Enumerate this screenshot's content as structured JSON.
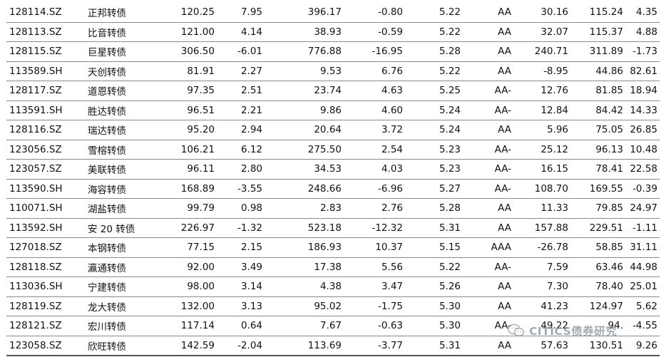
{
  "rows": [
    [
      "128114.SZ",
      "正邦转债",
      "120.25",
      "7.95",
      "396.17",
      "-0.80",
      "5.22",
      "AA",
      "30.16",
      "115.24",
      "4.35"
    ],
    [
      "128113.SZ",
      "比音转债",
      "121.00",
      "4.14",
      "38.93",
      "-0.59",
      "5.22",
      "AA",
      "32.07",
      "115.37",
      "4.88"
    ],
    [
      "128115.SZ",
      "巨星转债",
      "306.50",
      "-6.01",
      "776.88",
      "-16.95",
      "5.28",
      "AA",
      "240.71",
      "311.89",
      "-1.73"
    ],
    [
      "113589.SH",
      "天创转债",
      "81.91",
      "2.27",
      "9.53",
      "6.76",
      "5.22",
      "AA",
      "-8.95",
      "44.86",
      "82.61"
    ],
    [
      "128117.SZ",
      "道恩转债",
      "97.35",
      "2.51",
      "23.74",
      "4.63",
      "5.25",
      "AA-",
      "12.76",
      "81.85",
      "18.94"
    ],
    [
      "113591.SH",
      "胜达转债",
      "96.51",
      "2.21",
      "9.86",
      "4.60",
      "5.24",
      "AA-",
      "12.84",
      "84.42",
      "14.33"
    ],
    [
      "128116.SZ",
      "瑞达转债",
      "95.20",
      "2.94",
      "20.64",
      "3.72",
      "5.24",
      "AA",
      "5.96",
      "75.05",
      "26.85"
    ],
    [
      "123056.SZ",
      "雪榕转债",
      "106.21",
      "6.12",
      "275.50",
      "2.54",
      "5.23",
      "AA-",
      "25.12",
      "96.13",
      "10.48"
    ],
    [
      "123057.SZ",
      "美联转债",
      "96.11",
      "2.80",
      "34.53",
      "4.03",
      "5.23",
      "AA-",
      "16.15",
      "78.41",
      "22.58"
    ],
    [
      "113590.SH",
      "海容转债",
      "168.89",
      "-3.55",
      "248.66",
      "-6.96",
      "5.27",
      "AA-",
      "108.70",
      "169.55",
      "-0.39"
    ],
    [
      "110071.SH",
      "湖盐转债",
      "99.79",
      "0.98",
      "2.83",
      "2.76",
      "5.28",
      "AA",
      "11.33",
      "79.85",
      "24.97"
    ],
    [
      "113592.SH",
      "安 20 转债",
      "226.97",
      "-1.32",
      "523.18",
      "-12.32",
      "5.31",
      "AA",
      "157.88",
      "229.51",
      "-1.11"
    ],
    [
      "127018.SZ",
      "本钢转债",
      "77.15",
      "2.15",
      "186.93",
      "10.37",
      "5.15",
      "AAA",
      "-26.78",
      "58.85",
      "31.11"
    ],
    [
      "128118.SZ",
      "瀛通转债",
      "92.00",
      "3.49",
      "17.38",
      "5.56",
      "5.22",
      "AA-",
      "7.59",
      "63.46",
      "44.98"
    ],
    [
      "113036.SH",
      "宁建转债",
      "98.00",
      "3.14",
      "4.38",
      "3.47",
      "5.26",
      "AA",
      "7.30",
      "78.40",
      "25.01"
    ],
    [
      "128119.SZ",
      "龙大转债",
      "132.00",
      "3.13",
      "95.02",
      "-1.75",
      "5.30",
      "AA",
      "41.23",
      "124.97",
      "5.62"
    ],
    [
      "128121.SZ",
      "宏川转债",
      "117.14",
      "0.64",
      "7.67",
      "-0.63",
      "5.30",
      "AA-",
      "49.22",
      "94.",
      "-4.55"
    ],
    [
      "123058.SZ",
      "欣旺转债",
      "142.59",
      "-2.04",
      "113.69",
      "-3.77",
      "5.31",
      "AA",
      "57.63",
      "130.51",
      "9.26"
    ]
  ],
  "watermark": {
    "text": "CITICS债券研究",
    "icon": "wechat-icon",
    "color": "#7f8c96"
  }
}
